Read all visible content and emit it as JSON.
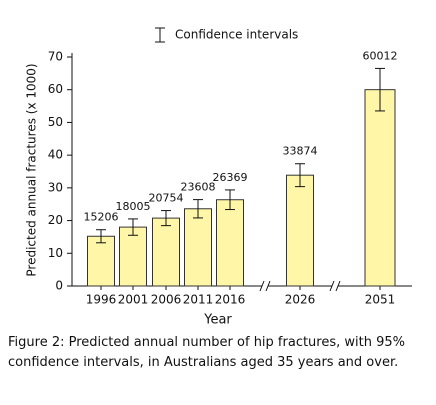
{
  "chart_data": {
    "type": "bar",
    "legend": "Confidence intervals",
    "x_label": "Year",
    "y_label": "Predicted annual fractures (x 1000)",
    "categories": [
      "1996",
      "2001",
      "2006",
      "2011",
      "2016",
      "2026",
      "2051"
    ],
    "values": [
      15.206,
      18.005,
      20.754,
      23.608,
      26.369,
      33.874,
      60.012
    ],
    "value_labels": [
      "15206",
      "18005",
      "20754",
      "23608",
      "26369",
      "33874",
      "60012"
    ],
    "errors": [
      2,
      2.5,
      2.3,
      2.8,
      3,
      3.5,
      6.5
    ],
    "color": "#fff6a8",
    "ylim": [
      0,
      70
    ],
    "yticks": [
      0,
      10,
      20,
      30,
      40,
      50,
      60,
      70
    ],
    "caption": "Figure 2: Predicted annual number of hip fractures, with 95% confidence intervals, in Australians aged 35 years and over."
  }
}
